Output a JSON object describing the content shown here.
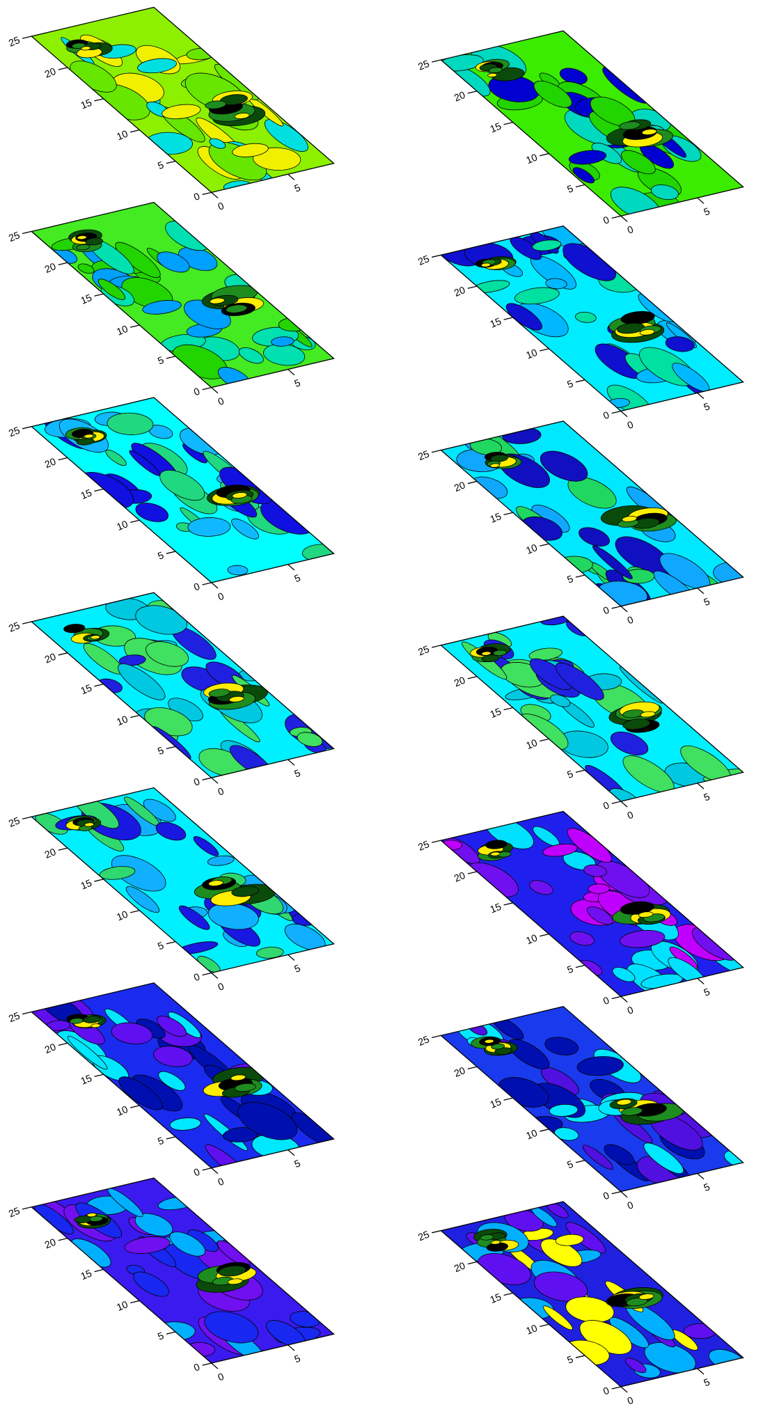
{
  "chart_data": [
    {
      "type": "contour",
      "xlim": [
        0,
        8
      ],
      "ylim": [
        0,
        25
      ],
      "xticks": [
        0,
        5
      ],
      "yticks": [
        0,
        5,
        10,
        15,
        20,
        25
      ],
      "colors": [
        "#8cf000",
        "#66e600",
        "#f0f000",
        "#00e0e0"
      ]
    },
    {
      "type": "contour",
      "xlim": [
        0,
        8
      ],
      "ylim": [
        0,
        25
      ],
      "xticks": [
        0,
        5
      ],
      "yticks": [
        0,
        5,
        10,
        15,
        20,
        25
      ],
      "colors": [
        "#3cec00",
        "#22d400",
        "#00d8c0",
        "#0000d0"
      ]
    },
    {
      "type": "contour",
      "xlim": [
        0,
        8
      ],
      "ylim": [
        0,
        25
      ],
      "xticks": [
        0,
        5
      ],
      "yticks": [
        0,
        5,
        10,
        15,
        20,
        25
      ],
      "colors": [
        "#44ea22",
        "#22d400",
        "#00e0b0",
        "#00a0ff"
      ]
    },
    {
      "type": "contour",
      "xlim": [
        0,
        8
      ],
      "ylim": [
        0,
        25
      ],
      "xticks": [
        0,
        5
      ],
      "yticks": [
        0,
        5,
        10,
        15,
        20,
        25
      ],
      "colors": [
        "#00ecff",
        "#00b8ff",
        "#00e0a0",
        "#1010d0"
      ]
    },
    {
      "type": "contour",
      "xlim": [
        0,
        8
      ],
      "ylim": [
        0,
        25
      ],
      "xticks": [
        0,
        5
      ],
      "yticks": [
        0,
        5,
        10,
        15,
        20,
        25
      ],
      "colors": [
        "#00ffff",
        "#10b8ff",
        "#20d880",
        "#1010e0"
      ]
    },
    {
      "type": "contour",
      "xlim": [
        0,
        8
      ],
      "ylim": [
        0,
        25
      ],
      "xticks": [
        0,
        5
      ],
      "yticks": [
        0,
        5,
        10,
        15,
        20,
        25
      ],
      "colors": [
        "#00e8ff",
        "#10a8ff",
        "#20d860",
        "#1010c0"
      ]
    },
    {
      "type": "contour",
      "xlim": [
        0,
        8
      ],
      "ylim": [
        0,
        25
      ],
      "xticks": [
        0,
        5
      ],
      "yticks": [
        0,
        5,
        10,
        15,
        20,
        25
      ],
      "colors": [
        "#00f0ff",
        "#40e060",
        "#00c8e0",
        "#2020e0"
      ]
    },
    {
      "type": "contour",
      "xlim": [
        0,
        8
      ],
      "ylim": [
        0,
        25
      ],
      "xticks": [
        0,
        5
      ],
      "yticks": [
        0,
        5,
        10,
        15,
        20,
        25
      ],
      "colors": [
        "#00f0ff",
        "#40e060",
        "#00c8e0",
        "#2020e0"
      ]
    },
    {
      "type": "contour",
      "xlim": [
        0,
        8
      ],
      "ylim": [
        0,
        25
      ],
      "xticks": [
        0,
        5
      ],
      "yticks": [
        0,
        5,
        10,
        15,
        20,
        25
      ],
      "colors": [
        "#00f0ff",
        "#10b0ff",
        "#30d870",
        "#1818e0"
      ]
    },
    {
      "type": "contour",
      "xlim": [
        0,
        8
      ],
      "ylim": [
        0,
        25
      ],
      "xticks": [
        0,
        5
      ],
      "yticks": [
        0,
        5,
        10,
        15,
        20,
        25
      ],
      "colors": [
        "#2020ee",
        "#7010f0",
        "#00e0ff",
        "#c000ff"
      ]
    },
    {
      "type": "contour",
      "xlim": [
        0,
        8
      ],
      "ylim": [
        0,
        25
      ],
      "xticks": [
        0,
        5
      ],
      "yticks": [
        0,
        5,
        10,
        15,
        20,
        25
      ],
      "colors": [
        "#1a2aee",
        "#0010b0",
        "#00e8ff",
        "#6010f0"
      ]
    },
    {
      "type": "contour",
      "xlim": [
        0,
        8
      ],
      "ylim": [
        0,
        25
      ],
      "xticks": [
        0,
        5
      ],
      "yticks": [
        0,
        5,
        10,
        15,
        20,
        25
      ],
      "colors": [
        "#1a3aee",
        "#0010b0",
        "#00e8ff",
        "#5010e0"
      ]
    },
    {
      "type": "contour",
      "xlim": [
        0,
        8
      ],
      "ylim": [
        0,
        25
      ],
      "xticks": [
        0,
        5
      ],
      "yticks": [
        0,
        5,
        10,
        15,
        20,
        25
      ],
      "colors": [
        "#3a1aee",
        "#1828f0",
        "#7010f0",
        "#00b0ff"
      ]
    },
    {
      "type": "contour",
      "xlim": [
        0,
        8
      ],
      "ylim": [
        0,
        25
      ],
      "xticks": [
        0,
        5
      ],
      "yticks": [
        0,
        5,
        10,
        15,
        20,
        25
      ],
      "colors": [
        "#2020e0",
        "#ffff00",
        "#6010f0",
        "#00b0ff"
      ]
    }
  ]
}
